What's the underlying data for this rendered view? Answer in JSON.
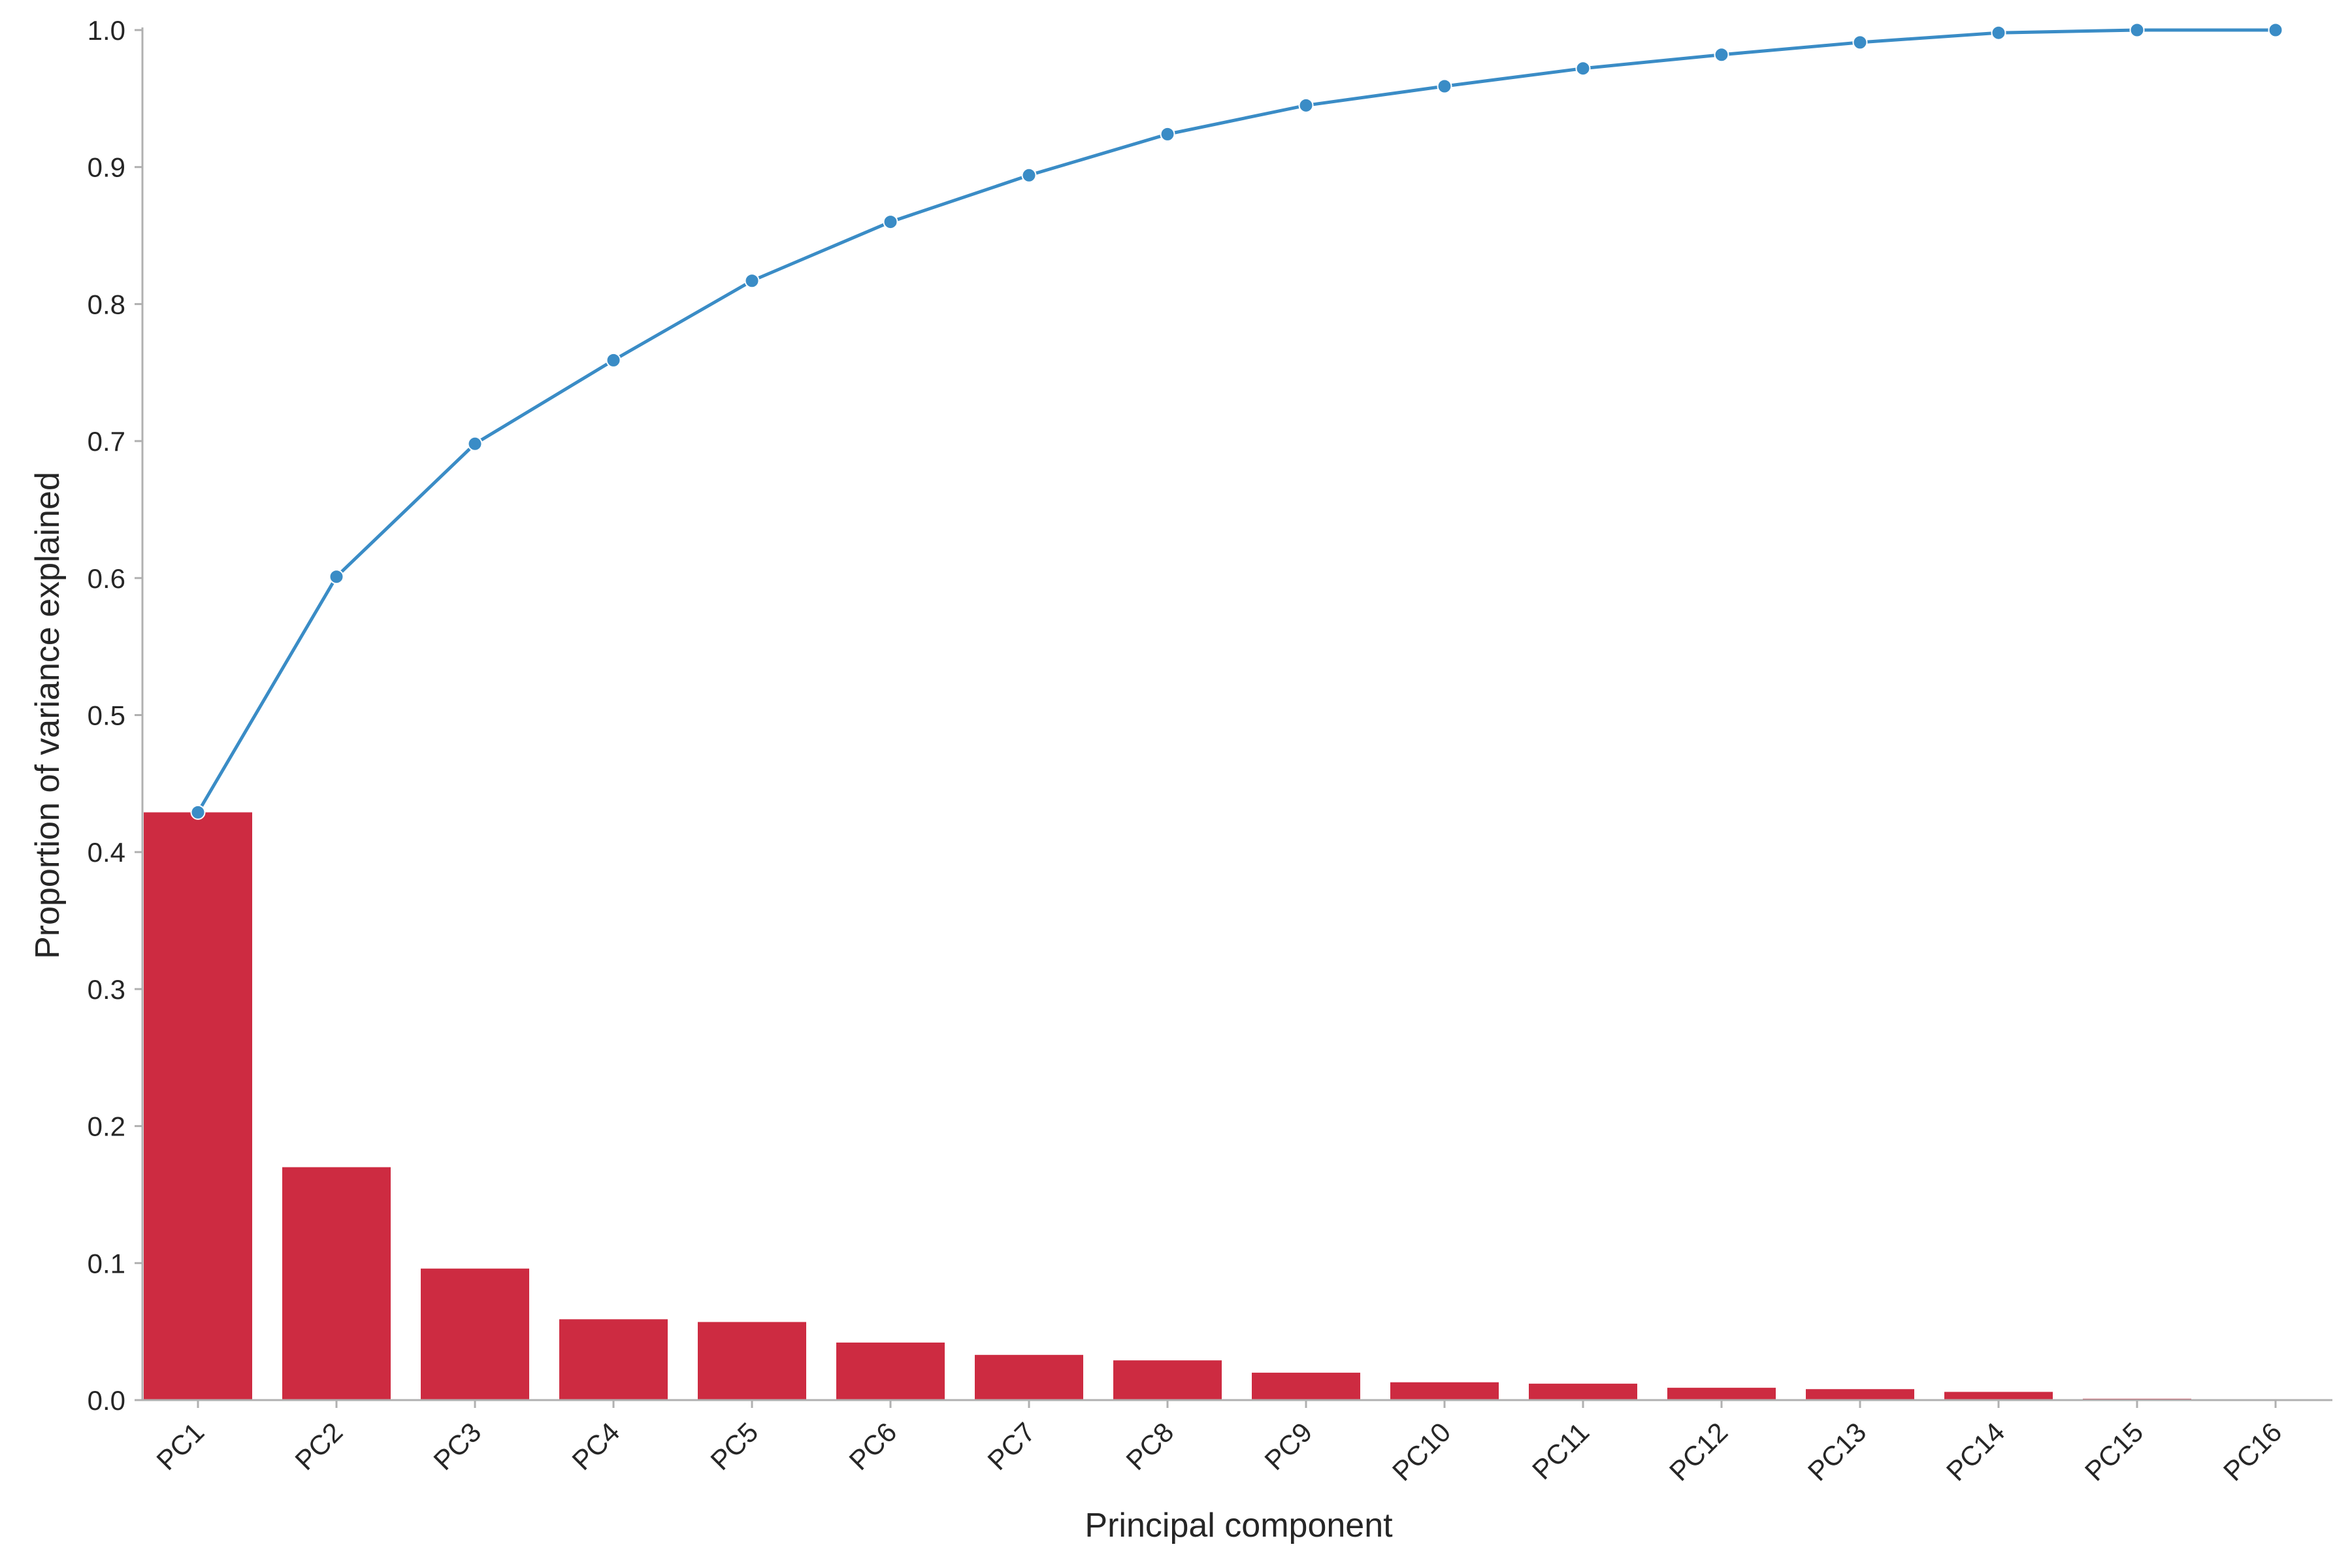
{
  "chart_data": {
    "type": "bar",
    "title": "",
    "xlabel": "Principal component",
    "ylabel": "Proportion of variance explained",
    "ylim": [
      0,
      1.0
    ],
    "yticks": [
      "0.0",
      "0.1",
      "0.2",
      "0.3",
      "0.4",
      "0.5",
      "0.6",
      "0.7",
      "0.8",
      "0.9",
      "1.0"
    ],
    "categories": [
      "PC1",
      "PC2",
      "PC3",
      "PC4",
      "PC5",
      "PC6",
      "PC7",
      "PC8",
      "PC9",
      "PC10",
      "PC11",
      "PC12",
      "PC13",
      "PC14",
      "PC15",
      "PC16"
    ],
    "series": [
      {
        "type": "bar",
        "color": "#cd2b41",
        "values": [
          0.429,
          0.17,
          0.096,
          0.059,
          0.057,
          0.042,
          0.033,
          0.029,
          0.02,
          0.013,
          0.012,
          0.009,
          0.008,
          0.006,
          0.001,
          0.0003
        ]
      },
      {
        "type": "line",
        "color": "#3a8cc6",
        "values": [
          0.429,
          0.601,
          0.698,
          0.759,
          0.817,
          0.86,
          0.894,
          0.924,
          0.945,
          0.959,
          0.972,
          0.982,
          0.991,
          0.998,
          1.0,
          1.0
        ]
      }
    ],
    "grid": false,
    "legend": "none"
  }
}
